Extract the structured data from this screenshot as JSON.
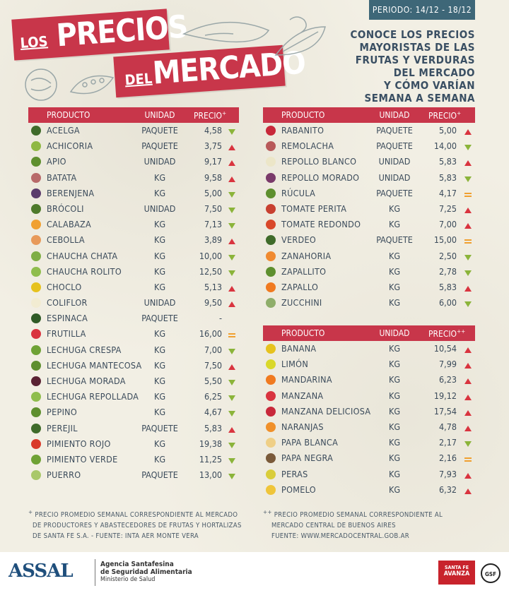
{
  "period": "PERIODO: 14/12 - 18/12",
  "title": {
    "los": "LOS",
    "precios": "PRECIOS",
    "del": "DEL",
    "mercado": "MERCADO"
  },
  "subtitle": [
    "CONOCE LOS PRECIOS",
    "MAYORISTAS DE LAS",
    "FRUTAS Y VERDURAS",
    "DEL MERCADO",
    "Y CÓMO VARÍAN",
    "SEMANA A SEMANA"
  ],
  "colors": {
    "brand_red": "#c8364a",
    "period_blue": "#3e6778",
    "up": "#d9343f",
    "down": "#8bb43a",
    "equal": "#f0a030"
  },
  "headers": {
    "producto": "PRODUCTO",
    "unidad": "UNIDAD",
    "precio": "PRECIO",
    "sup1": "+",
    "sup2": "++"
  },
  "left_rows": [
    {
      "name": "ACELGA",
      "unit": "PAQUETE",
      "price": "4,58",
      "trend": "down",
      "color": "#3f6b2a"
    },
    {
      "name": "ACHICORIA",
      "unit": "PAQUETE",
      "price": "3,75",
      "trend": "up",
      "color": "#8fb843"
    },
    {
      "name": "APIO",
      "unit": "UNIDAD",
      "price": "9,17",
      "trend": "up",
      "color": "#5e8f2e"
    },
    {
      "name": "BATATA",
      "unit": "KG",
      "price": "9,58",
      "trend": "up",
      "color": "#b86a6a"
    },
    {
      "name": "BERENJENA",
      "unit": "KG",
      "price": "5,00",
      "trend": "down",
      "color": "#5a3b6b"
    },
    {
      "name": "BRÓCOLI",
      "unit": "UNIDAD",
      "price": "7,50",
      "trend": "down",
      "color": "#4e7a2b"
    },
    {
      "name": "CALABAZA",
      "unit": "KG",
      "price": "7,13",
      "trend": "down",
      "color": "#f0a030"
    },
    {
      "name": "CEBOLLA",
      "unit": "KG",
      "price": "3,89",
      "trend": "up",
      "color": "#e89a5a"
    },
    {
      "name": "CHAUCHA CHATA",
      "unit": "KG",
      "price": "10,00",
      "trend": "down",
      "color": "#7fae45"
    },
    {
      "name": "CHAUCHA ROLITO",
      "unit": "KG",
      "price": "12,50",
      "trend": "down",
      "color": "#8fbd4d"
    },
    {
      "name": "CHOCLO",
      "unit": "KG",
      "price": "5,13",
      "trend": "up",
      "color": "#e6c21e"
    },
    {
      "name": "COLIFLOR",
      "unit": "UNIDAD",
      "price": "9,50",
      "trend": "up",
      "color": "#f2ecd2"
    },
    {
      "name": "ESPINACA",
      "unit": "PAQUETE",
      "price": "-",
      "trend": "none",
      "color": "#2f5a26"
    },
    {
      "name": "FRUTILLA",
      "unit": "KG",
      "price": "16,00",
      "trend": "equal",
      "color": "#d9343f"
    },
    {
      "name": "LECHUGA CRESPA",
      "unit": "KG",
      "price": "7,00",
      "trend": "down",
      "color": "#6fa235"
    },
    {
      "name": "LECHUGA MANTECOSA",
      "unit": "KG",
      "price": "7,50",
      "trend": "up",
      "color": "#5e8f2e"
    },
    {
      "name": "LECHUGA MORADA",
      "unit": "KG",
      "price": "5,50",
      "trend": "down",
      "color": "#5a2233"
    },
    {
      "name": "LECHUGA REPOLLADA",
      "unit": "KG",
      "price": "6,25",
      "trend": "down",
      "color": "#8fbd4d"
    },
    {
      "name": "PEPINO",
      "unit": "KG",
      "price": "4,67",
      "trend": "down",
      "color": "#5e8f2e"
    },
    {
      "name": "PEREJIL",
      "unit": "PAQUETE",
      "price": "5,83",
      "trend": "up",
      "color": "#3f6b2a"
    },
    {
      "name": "PIMIENTO ROJO",
      "unit": "KG",
      "price": "19,38",
      "trend": "down",
      "color": "#d93a2a"
    },
    {
      "name": "PIMIENTO VERDE",
      "unit": "KG",
      "price": "11,25",
      "trend": "down",
      "color": "#6fa235"
    },
    {
      "name": "PUERRO",
      "unit": "PAQUETE",
      "price": "13,00",
      "trend": "down",
      "color": "#a9c86a"
    }
  ],
  "right_rows": [
    {
      "name": "RABANITO",
      "unit": "PAQUETE",
      "price": "5,00",
      "trend": "up",
      "color": "#c8283a"
    },
    {
      "name": "REMOLACHA",
      "unit": "PAQUETE",
      "price": "14,00",
      "trend": "down",
      "color": "#b85a5a"
    },
    {
      "name": "REPOLLO BLANCO",
      "unit": "UNIDAD",
      "price": "5,83",
      "trend": "up",
      "color": "#ece6c8"
    },
    {
      "name": "REPOLLO MORADO",
      "unit": "UNIDAD",
      "price": "5,83",
      "trend": "down",
      "color": "#7a3a6a"
    },
    {
      "name": "RÚCULA",
      "unit": "PAQUETE",
      "price": "4,17",
      "trend": "equal",
      "color": "#5e8f2e"
    },
    {
      "name": "TOMATE PERITA",
      "unit": "KG",
      "price": "7,25",
      "trend": "up",
      "color": "#c84030"
    },
    {
      "name": "TOMATE REDONDO",
      "unit": "KG",
      "price": "7,00",
      "trend": "up",
      "color": "#d9482a"
    },
    {
      "name": "VERDEO",
      "unit": "PAQUETE",
      "price": "15,00",
      "trend": "equal",
      "color": "#3f6b2a"
    },
    {
      "name": "ZANAHORIA",
      "unit": "KG",
      "price": "2,50",
      "trend": "down",
      "color": "#f08a30"
    },
    {
      "name": "ZAPALLITO",
      "unit": "KG",
      "price": "2,78",
      "trend": "down",
      "color": "#5e8f2e"
    },
    {
      "name": "ZAPALLO",
      "unit": "KG",
      "price": "5,83",
      "trend": "up",
      "color": "#f07a20"
    },
    {
      "name": "ZUCCHINI",
      "unit": "KG",
      "price": "6,00",
      "trend": "down",
      "color": "#8fae6a"
    }
  ],
  "fruit_rows": [
    {
      "name": "BANANA",
      "unit": "KG",
      "price": "10,54",
      "trend": "up",
      "color": "#e6c21e"
    },
    {
      "name": "LIMÓN",
      "unit": "KG",
      "price": "7,99",
      "trend": "up",
      "color": "#d9d82a"
    },
    {
      "name": "MANDARINA",
      "unit": "KG",
      "price": "6,23",
      "trend": "up",
      "color": "#f07a20"
    },
    {
      "name": "MANZANA",
      "unit": "KG",
      "price": "19,12",
      "trend": "up",
      "color": "#d9343f"
    },
    {
      "name": "MANZANA DELICIOSA",
      "unit": "KG",
      "price": "17,54",
      "trend": "up",
      "color": "#c8283a"
    },
    {
      "name": "NARANJAS",
      "unit": "KG",
      "price": "4,78",
      "trend": "up",
      "color": "#f0902a"
    },
    {
      "name": "PAPA BLANCA",
      "unit": "KG",
      "price": "2,17",
      "trend": "down",
      "color": "#efcf86"
    },
    {
      "name": "PAPA NEGRA",
      "unit": "KG",
      "price": "2,16",
      "trend": "equal",
      "color": "#7a5a3a"
    },
    {
      "name": "PERAS",
      "unit": "KG",
      "price": "7,93",
      "trend": "up",
      "color": "#d9cd3a"
    },
    {
      "name": "POMELO",
      "unit": "KG",
      "price": "6,32",
      "trend": "up",
      "color": "#efc53a"
    }
  ],
  "notes": {
    "left": [
      "PRECIO PROMEDIO SEMANAL CORRESPONDIENTE AL MERCADO",
      "DE PRODUCTORES Y ABASTECEDORES DE FRUTAS Y HORTALIZAS",
      "DE SANTA FE S.A. - FUENTE: INTA AER MONTE VERA"
    ],
    "right": [
      "PRECIO PROMEDIO SEMANAL CORRESPONDIENTE AL",
      "MERCADO CENTRAL DE BUENOS AIRES",
      "FUENTE: WWW.MERCADOCENTRAL.GOB.AR"
    ]
  },
  "footer": {
    "assal": "ASSAL",
    "agency": [
      "Agencia Santafesina",
      "de Seguridad Alimentaria",
      "Ministerio de Salud"
    ],
    "santafe": [
      "SANTA FE",
      "AVANZA"
    ],
    "gsf": "GSF"
  }
}
